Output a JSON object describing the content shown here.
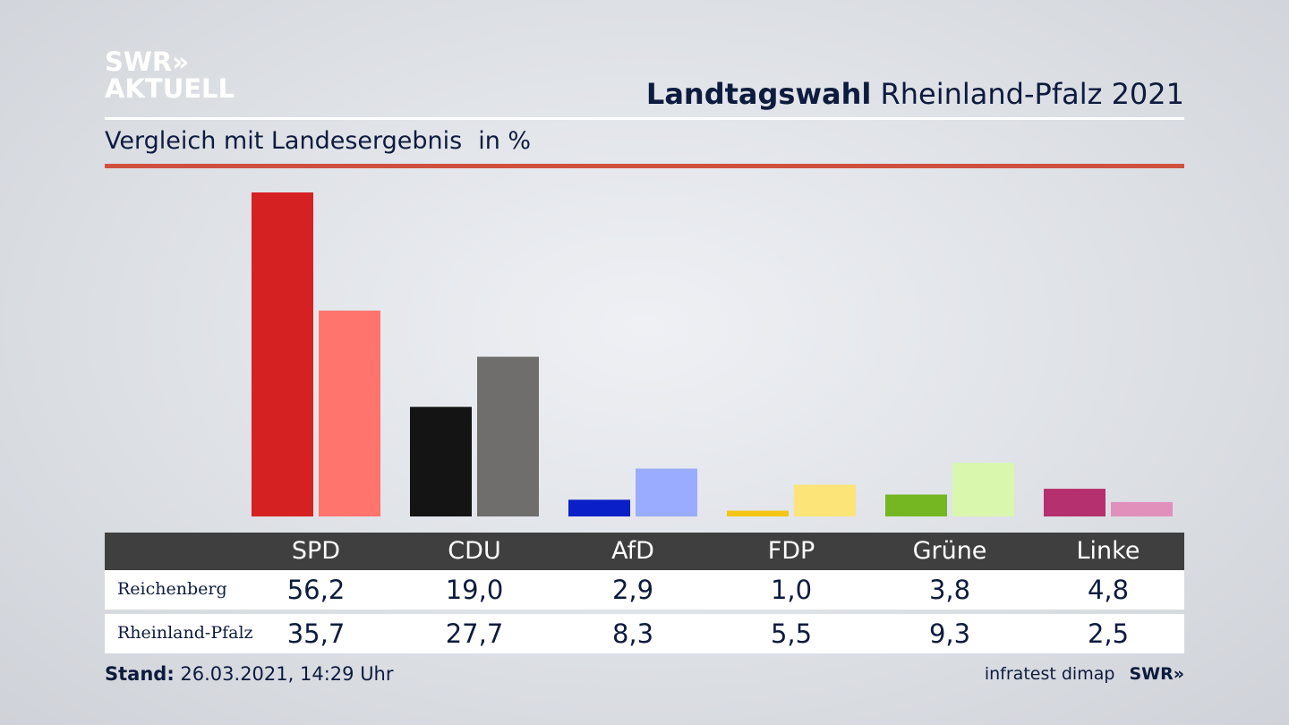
{
  "brand": {
    "line1": "SWR»",
    "line2": "AKTUELL"
  },
  "header": {
    "title_bold": "Landtagswahl",
    "title_rest": "Rheinland-Pfalz 2021"
  },
  "subtitle": {
    "text": "Vergleich mit Landesergebnis",
    "unit": "in %"
  },
  "colors": {
    "header_rule": "#ffffff",
    "accent_rule": "#d0503f",
    "table_header_bg": "#3f3f3f"
  },
  "chart_data": {
    "type": "bar",
    "categories": [
      "SPD",
      "CDU",
      "AfD",
      "FDP",
      "Grüne",
      "Linke"
    ],
    "series": [
      {
        "name": "Reichenberg",
        "values": [
          56.2,
          19.0,
          2.9,
          1.0,
          3.8,
          4.8
        ],
        "display": [
          "56,2",
          "19,0",
          "2,9",
          "1,0",
          "3,8",
          "4,8"
        ],
        "colors": [
          "#d52121",
          "#141414",
          "#0a1fc8",
          "#f5c518",
          "#74b723",
          "#b5306f"
        ]
      },
      {
        "name": "Rheinland-Pfalz",
        "values": [
          35.7,
          27.7,
          8.3,
          5.5,
          9.3,
          2.5
        ],
        "display": [
          "35,7",
          "27,7",
          "8,3",
          "5,5",
          "9,3",
          "2,5"
        ],
        "colors": [
          "#ff746c",
          "#6f6e6c",
          "#9aacff",
          "#fde478",
          "#d9f7ad",
          "#e090bb"
        ]
      }
    ],
    "ylim": [
      0,
      56.2
    ],
    "grid": false,
    "legend": "table-below"
  },
  "footer": {
    "stand_label": "Stand:",
    "stand_value": "26.03.2021, 14:29 Uhr",
    "source": "infratest dimap",
    "brand": "SWR»"
  }
}
